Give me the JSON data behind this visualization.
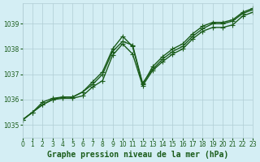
{
  "title": "Graphe pression niveau de la mer (hPa)",
  "background_color": "#d4eef4",
  "line_color": "#1a5c1a",
  "grid_color": "#b0ccd4",
  "xlim": [
    0,
    23
  ],
  "ylim": [
    1034.5,
    1039.8
  ],
  "xticks": [
    0,
    1,
    2,
    3,
    4,
    5,
    6,
    7,
    8,
    9,
    10,
    11,
    12,
    13,
    14,
    15,
    16,
    17,
    18,
    19,
    20,
    21,
    22,
    23
  ],
  "yticks": [
    1035,
    1036,
    1037,
    1038,
    1039
  ],
  "series": [
    [
      1035.2,
      1035.5,
      1035.8,
      1036.0,
      1036.1,
      1036.1,
      1036.3,
      1036.6,
      1037.0,
      1037.9,
      1038.3,
      1038.15,
      1036.65,
      1037.2,
      1037.6,
      1037.9,
      1038.1,
      1038.5,
      1038.8,
      1039.0,
      1039.0,
      1039.1,
      1039.4,
      1039.55
    ],
    [
      1035.2,
      1035.5,
      1035.9,
      1036.05,
      1036.1,
      1036.1,
      1036.3,
      1036.7,
      1037.1,
      1038.0,
      1038.5,
      1038.1,
      1036.6,
      1037.3,
      1037.7,
      1038.0,
      1038.2,
      1038.6,
      1038.9,
      1039.05,
      1039.05,
      1039.15,
      1039.45,
      1039.6
    ],
    [
      1035.2,
      1035.5,
      1035.8,
      1036.0,
      1036.05,
      1036.05,
      1036.15,
      1036.5,
      1036.75,
      1037.75,
      1038.2,
      1037.8,
      1036.55,
      1037.15,
      1037.5,
      1037.8,
      1038.0,
      1038.4,
      1038.7,
      1038.85,
      1038.85,
      1038.95,
      1039.3,
      1039.45
    ]
  ],
  "marker": "+",
  "markersize": 4,
  "linewidth": 1.0,
  "title_fontsize": 7,
  "tick_fontsize": 5.5,
  "title_color": "#1a5c1a",
  "tick_color": "#1a5c1a"
}
